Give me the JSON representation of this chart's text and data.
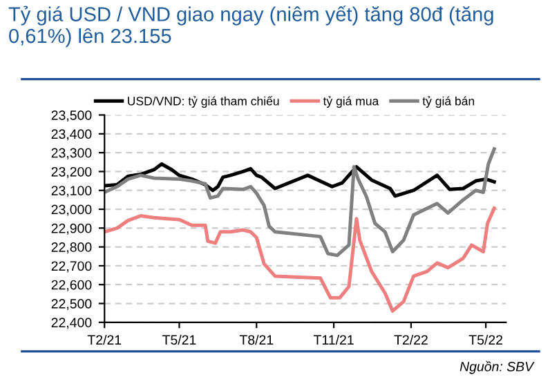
{
  "chart_data": {
    "type": "line",
    "title": "Tỷ giá USD / VND giao ngay (niêm yết) tăng 80đ (tăng 0,61%) lên 23.155",
    "annotations": [
      "Nguồn: SBV"
    ],
    "series": [
      {
        "name": "USD/VND: tỷ giá tham chiếu",
        "color": "#000000",
        "x": [
          "2021-02-01",
          "2021-02-16",
          "2021-03-01",
          "2021-03-16",
          "2021-04-01",
          "2021-04-10",
          "2021-04-22",
          "2021-05-01",
          "2021-05-16",
          "2021-06-01",
          "2021-06-10",
          "2021-06-16",
          "2021-06-22",
          "2021-07-01",
          "2021-07-16",
          "2021-07-25",
          "2021-08-01",
          "2021-08-07",
          "2021-08-23",
          "2021-10-01",
          "2021-10-30",
          "2021-11-11",
          "2021-11-28",
          "2021-12-16",
          "2022-01-07",
          "2022-01-13",
          "2022-02-04",
          "2022-03-04",
          "2022-03-19",
          "2022-04-04",
          "2022-04-19",
          "2022-05-01",
          "2022-05-11"
        ],
        "values": [
          23125,
          23130,
          23175,
          23185,
          23210,
          23240,
          23210,
          23180,
          23160,
          23130,
          23100,
          23120,
          23170,
          23180,
          23200,
          23215,
          23180,
          23170,
          23110,
          23180,
          23120,
          23140,
          23225,
          23155,
          23110,
          23070,
          23100,
          23180,
          23105,
          23110,
          23150,
          23160,
          23145
        ]
      },
      {
        "name": "tỷ giá mua",
        "color": "#ef7f7f",
        "x": [
          "2021-02-01",
          "2021-02-16",
          "2021-03-01",
          "2021-03-16",
          "2021-04-01",
          "2021-04-16",
          "2021-05-01",
          "2021-05-16",
          "2021-06-01",
          "2021-06-04",
          "2021-06-13",
          "2021-06-19",
          "2021-07-01",
          "2021-07-16",
          "2021-07-25",
          "2021-08-01",
          "2021-08-10",
          "2021-08-16",
          "2021-08-23",
          "2021-10-16",
          "2021-10-28",
          "2021-11-08",
          "2021-11-19",
          "2021-11-28",
          "2021-12-02",
          "2021-12-16",
          "2022-01-01",
          "2022-01-10",
          "2022-01-23",
          "2022-02-04",
          "2022-02-20",
          "2022-03-04",
          "2022-03-17",
          "2022-04-04",
          "2022-04-14",
          "2022-04-28",
          "2022-05-03",
          "2022-05-11"
        ],
        "values": [
          22880,
          22900,
          22940,
          22965,
          22955,
          22950,
          22945,
          22915,
          22915,
          22830,
          22820,
          22880,
          22880,
          22890,
          22880,
          22850,
          22710,
          22680,
          22645,
          22635,
          22530,
          22530,
          22590,
          22950,
          22835,
          22670,
          22555,
          22460,
          22510,
          22645,
          22670,
          22715,
          22690,
          22740,
          22810,
          22775,
          22925,
          23005
        ]
      },
      {
        "name": "tỷ giá bán",
        "color": "#808080",
        "x": [
          "2021-02-01",
          "2021-02-16",
          "2021-03-01",
          "2021-03-16",
          "2021-04-01",
          "2021-05-01",
          "2021-05-16",
          "2021-06-01",
          "2021-06-07",
          "2021-06-16",
          "2021-06-22",
          "2021-07-16",
          "2021-07-25",
          "2021-08-01",
          "2021-08-10",
          "2021-08-16",
          "2021-08-23",
          "2021-10-16",
          "2021-10-25",
          "2021-11-05",
          "2021-11-19",
          "2021-11-25",
          "2021-11-30",
          "2021-12-10",
          "2021-12-20",
          "2022-01-01",
          "2022-01-10",
          "2022-01-23",
          "2022-02-04",
          "2022-02-20",
          "2022-03-04",
          "2022-03-17",
          "2022-04-04",
          "2022-04-19",
          "2022-04-28",
          "2022-05-04",
          "2022-05-11"
        ],
        "values": [
          23090,
          23120,
          23160,
          23180,
          23165,
          23160,
          23150,
          23135,
          23060,
          23070,
          23110,
          23105,
          23120,
          23085,
          23020,
          22910,
          22880,
          22855,
          22765,
          22755,
          22810,
          23225,
          23160,
          23065,
          22925,
          22880,
          22775,
          22835,
          22970,
          23005,
          23030,
          22980,
          23050,
          23100,
          23090,
          23240,
          23320
        ]
      }
    ],
    "xlim": [
      "2021-02-01",
      "2022-05-25"
    ],
    "xticks": [
      {
        "value": "2021-02-01",
        "label": "T2/21"
      },
      {
        "value": "2021-05-01",
        "label": "T5/21"
      },
      {
        "value": "2021-08-01",
        "label": "T8/21"
      },
      {
        "value": "2021-11-01",
        "label": "T11/21"
      },
      {
        "value": "2022-02-01",
        "label": "T2/22"
      },
      {
        "value": "2022-05-01",
        "label": "T5/22"
      }
    ],
    "ylim": [
      22400,
      23500
    ],
    "yticks": [
      {
        "value": 22400,
        "label": "22,400"
      },
      {
        "value": 22500,
        "label": "22,500"
      },
      {
        "value": 22600,
        "label": "22,600"
      },
      {
        "value": 22700,
        "label": "22,700"
      },
      {
        "value": 22800,
        "label": "22,800"
      },
      {
        "value": 22900,
        "label": "22,900"
      },
      {
        "value": 23000,
        "label": "23,000"
      },
      {
        "value": 23100,
        "label": "23,100"
      },
      {
        "value": 23200,
        "label": "23,200"
      },
      {
        "value": 23300,
        "label": "23,300"
      },
      {
        "value": 23400,
        "label": "23,400"
      },
      {
        "value": 23500,
        "label": "23,500"
      }
    ],
    "grid": "y",
    "legend": "top",
    "marker": "none",
    "line_style": "solid"
  }
}
